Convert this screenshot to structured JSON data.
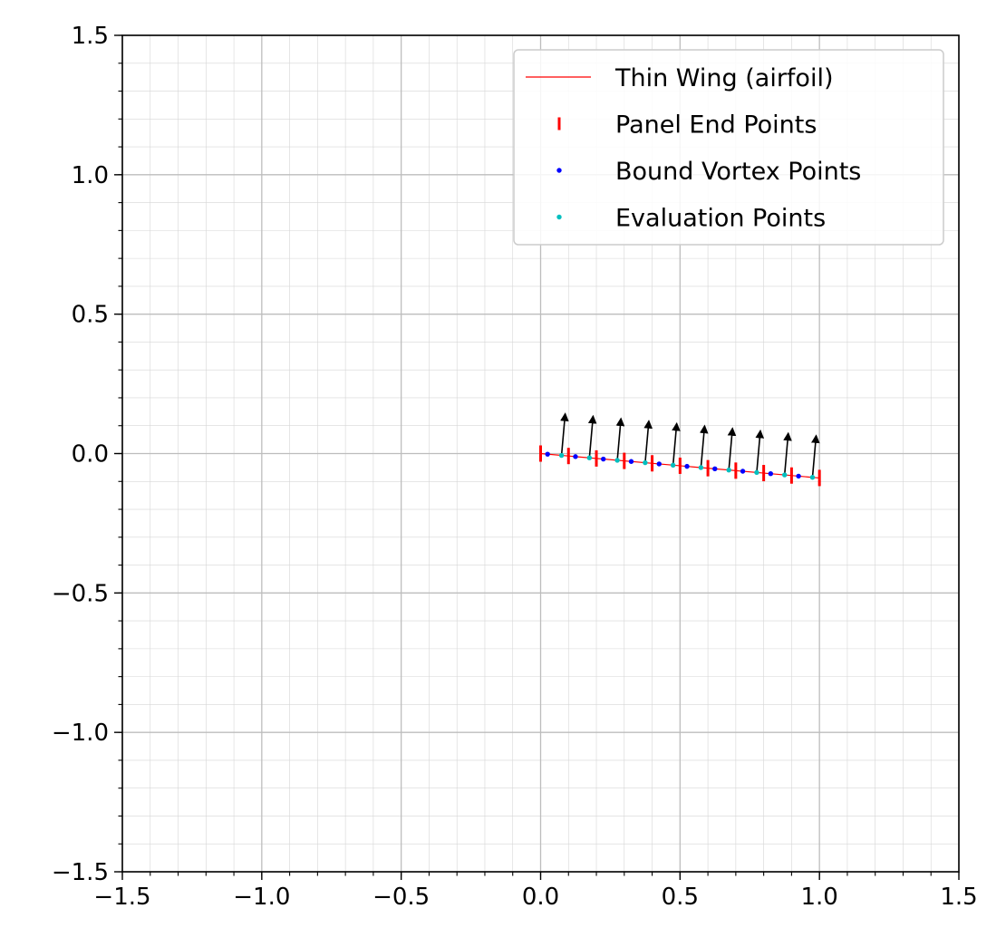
{
  "chart_data": {
    "type": "line",
    "title": "",
    "xlabel": "",
    "ylabel": "",
    "xlim": [
      -1.5,
      1.5
    ],
    "ylim": [
      -1.5,
      1.5
    ],
    "x_ticks": [
      -1.5,
      -1.0,
      -0.5,
      0.0,
      0.5,
      1.0,
      1.5
    ],
    "y_ticks": [
      -1.5,
      -1.0,
      -0.5,
      0.0,
      0.5,
      1.0,
      1.5
    ],
    "x_tick_labels": [
      "−1.5",
      "−1.0",
      "−0.5",
      "0.0",
      "0.5",
      "1.0",
      "1.5"
    ],
    "y_tick_labels": [
      "−1.5",
      "−1.0",
      "−0.5",
      "0.0",
      "0.5",
      "1.0",
      "1.5"
    ],
    "grid": true,
    "minor_grid": true,
    "legend_position": "top-right",
    "series": [
      {
        "name": "Thin Wing (airfoil)",
        "kind": "line",
        "color": "#ff0000",
        "x": [
          0.0,
          1.0
        ],
        "y": [
          0.0,
          -0.0875
        ]
      },
      {
        "name": "Panel End Points",
        "kind": "vline-marker",
        "color": "#ff0000",
        "x": [
          0.0,
          0.1,
          0.2,
          0.3,
          0.4,
          0.5,
          0.6,
          0.7,
          0.8,
          0.9,
          1.0
        ],
        "y": [
          0.0,
          -0.00875,
          -0.0175,
          -0.02625,
          -0.035,
          -0.04375,
          -0.0525,
          -0.06125,
          -0.07,
          -0.07875,
          -0.0875
        ]
      },
      {
        "name": "Bound Vortex Points",
        "kind": "point",
        "color": "#0000ff",
        "x": [
          0.025,
          0.125,
          0.225,
          0.325,
          0.425,
          0.525,
          0.625,
          0.725,
          0.825,
          0.925
        ],
        "y": [
          -0.0022,
          -0.0109,
          -0.0197,
          -0.0284,
          -0.0372,
          -0.0459,
          -0.0547,
          -0.0634,
          -0.0722,
          -0.0809
        ]
      },
      {
        "name": "Evaluation Points",
        "kind": "point",
        "color": "#00bfbf",
        "x": [
          0.075,
          0.175,
          0.275,
          0.375,
          0.475,
          0.575,
          0.675,
          0.775,
          0.875,
          0.975
        ],
        "y": [
          -0.0066,
          -0.0153,
          -0.0241,
          -0.0328,
          -0.0416,
          -0.0503,
          -0.0591,
          -0.0678,
          -0.0766,
          -0.0853
        ]
      },
      {
        "kind": "normal-vectors",
        "color": "#000000",
        "origins_x": [
          0.075,
          0.175,
          0.275,
          0.375,
          0.475,
          0.575,
          0.675,
          0.775,
          0.875,
          0.975
        ],
        "origins_y": [
          -0.0066,
          -0.0153,
          -0.0241,
          -0.0328,
          -0.0416,
          -0.0503,
          -0.0591,
          -0.0678,
          -0.0766,
          -0.0853
        ],
        "dx": 0.0131,
        "dy": 0.149
      }
    ]
  }
}
